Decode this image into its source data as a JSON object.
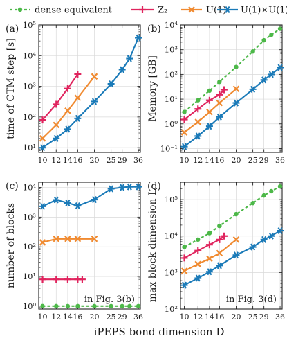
{
  "legend": {
    "entries": [
      {
        "key": "dense",
        "label": "dense equivalent"
      },
      {
        "key": "z2",
        "label": "Z₂"
      },
      {
        "key": "u1",
        "label": "U(1)"
      },
      {
        "key": "u1u1",
        "label": "U(1)×U(1)"
      }
    ]
  },
  "colors": {
    "dense": "#4cb848",
    "z2": "#e0245e",
    "u1": "#f08a30",
    "u1u1": "#1a7ab8"
  },
  "xlabel": "iPEPS bond dimension D",
  "chart_data": [
    {
      "type": "line",
      "panel_label": "(a)",
      "ylabel": "time of CTM step [s]",
      "x_scale": "log",
      "y_scale": "log",
      "xlim": [
        9.5,
        37
      ],
      "ylim": [
        7,
        100000
      ],
      "xticks": [
        10,
        12,
        14,
        16,
        20,
        25,
        29,
        36
      ],
      "xticklabels": [
        "10",
        "12",
        "14",
        "16",
        "20",
        "25",
        "29",
        "36"
      ],
      "yticks": [
        10,
        100,
        1000,
        10000,
        100000
      ],
      "yticklabels": [
        "10¹",
        "10²",
        "10³",
        "10⁴",
        "10⁵"
      ],
      "annotation": "",
      "series": [
        {
          "key": "z2",
          "x": [
            10,
            12,
            14,
            16
          ],
          "y": [
            80,
            260,
            850,
            2500
          ]
        },
        {
          "key": "u1",
          "x": [
            10,
            12,
            14,
            16,
            20
          ],
          "y": [
            20,
            55,
            160,
            420,
            2100
          ]
        },
        {
          "key": "u1u1",
          "x": [
            10,
            12,
            14,
            16,
            20,
            25,
            29,
            32,
            36
          ],
          "y": [
            10,
            20,
            40,
            90,
            320,
            1200,
            3500,
            8000,
            38000
          ]
        }
      ]
    },
    {
      "type": "line",
      "panel_label": "(b)",
      "ylabel": "Memory [GB]",
      "x_scale": "log",
      "y_scale": "log",
      "xlim": [
        9.5,
        37
      ],
      "ylim": [
        0.07,
        10000
      ],
      "xticks": [
        10,
        12,
        14,
        16,
        20,
        25,
        29,
        36
      ],
      "xticklabels": [
        "10",
        "12",
        "14",
        "16",
        "20",
        "25",
        "29",
        "36"
      ],
      "yticks": [
        0.1,
        1,
        10,
        100,
        1000,
        10000
      ],
      "yticklabels": [
        "10⁻¹",
        "10⁰",
        "10¹",
        "10²",
        "10³",
        "10⁴"
      ],
      "annotation": "",
      "series": [
        {
          "key": "dense",
          "x": [
            10,
            12,
            14,
            16,
            20,
            25,
            29,
            32,
            36
          ],
          "y": [
            3,
            9,
            22,
            50,
            200,
            850,
            2400,
            4000,
            7000
          ]
        },
        {
          "key": "z2",
          "x": [
            10,
            12,
            14,
            16,
            17
          ],
          "y": [
            1.5,
            4,
            9,
            15,
            24
          ]
        },
        {
          "key": "u1",
          "x": [
            10,
            12,
            14,
            16,
            20
          ],
          "y": [
            0.45,
            1.2,
            3,
            7,
            26
          ]
        },
        {
          "key": "u1u1",
          "x": [
            10,
            12,
            14,
            16,
            20,
            25,
            29,
            32,
            36
          ],
          "y": [
            0.12,
            0.32,
            0.8,
            1.9,
            7,
            25,
            60,
            100,
            190
          ]
        }
      ]
    },
    {
      "type": "line",
      "panel_label": "(c)",
      "ylabel": "number of blocks",
      "x_scale": "log",
      "y_scale": "log",
      "xlim": [
        9.5,
        37
      ],
      "ylim": [
        0.8,
        15000
      ],
      "xticks": [
        10,
        12,
        14,
        16,
        20,
        25,
        29,
        36
      ],
      "xticklabels": [
        "10",
        "12",
        "14",
        "16",
        "20",
        "25",
        "29",
        "36"
      ],
      "yticks": [
        1,
        10,
        100,
        1000,
        10000
      ],
      "yticklabels": [
        "10⁰",
        "10¹",
        "10²",
        "10³",
        "10⁴"
      ],
      "annotation": "in Fig. 3(b)",
      "series": [
        {
          "key": "dense",
          "x": [
            10,
            12,
            14,
            16,
            20,
            25,
            29,
            32,
            36
          ],
          "y": [
            1,
            1,
            1,
            1,
            1,
            1,
            1,
            1,
            1
          ]
        },
        {
          "key": "z2",
          "x": [
            10,
            12,
            14,
            16,
            17
          ],
          "y": [
            8,
            8,
            8,
            8,
            8
          ]
        },
        {
          "key": "u1",
          "x": [
            10,
            12,
            14,
            16,
            20
          ],
          "y": [
            140,
            185,
            185,
            185,
            185
          ]
        },
        {
          "key": "u1u1",
          "x": [
            10,
            12,
            14,
            16,
            20,
            25,
            29,
            32,
            36
          ],
          "y": [
            2300,
            3800,
            3000,
            2400,
            3900,
            9000,
            10000,
            10500,
            10500
          ]
        }
      ]
    },
    {
      "type": "line",
      "panel_label": "(d)",
      "ylabel": "max block dimension L",
      "x_scale": "log",
      "y_scale": "log",
      "xlim": [
        9.5,
        37
      ],
      "ylim": [
        100,
        300000
      ],
      "xticks": [
        10,
        12,
        14,
        16,
        20,
        25,
        29,
        36
      ],
      "xticklabels": [
        "10",
        "12",
        "14",
        "16",
        "20",
        "25",
        "29",
        "36"
      ],
      "yticks": [
        100,
        1000,
        10000,
        100000
      ],
      "yticklabels": [
        "10²",
        "10³",
        "10⁴",
        "10⁵"
      ],
      "annotation": "in Fig. 3(d)",
      "series": [
        {
          "key": "dense",
          "x": [
            10,
            12,
            14,
            16,
            20,
            25,
            29,
            32,
            36
          ],
          "y": [
            5000,
            8000,
            12000,
            19000,
            40000,
            80000,
            130000,
            170000,
            230000
          ]
        },
        {
          "key": "z2",
          "x": [
            10,
            12,
            14,
            16,
            17
          ],
          "y": [
            2500,
            4000,
            5800,
            8000,
            10000
          ]
        },
        {
          "key": "u1",
          "x": [
            10,
            12,
            14,
            16,
            20
          ],
          "y": [
            1100,
            1700,
            2400,
            3400,
            8000
          ]
        },
        {
          "key": "u1u1",
          "x": [
            10,
            12,
            14,
            16,
            20,
            25,
            29,
            32,
            36
          ],
          "y": [
            450,
            700,
            1050,
            1550,
            3000,
            5000,
            8000,
            10000,
            14000
          ]
        }
      ]
    }
  ]
}
